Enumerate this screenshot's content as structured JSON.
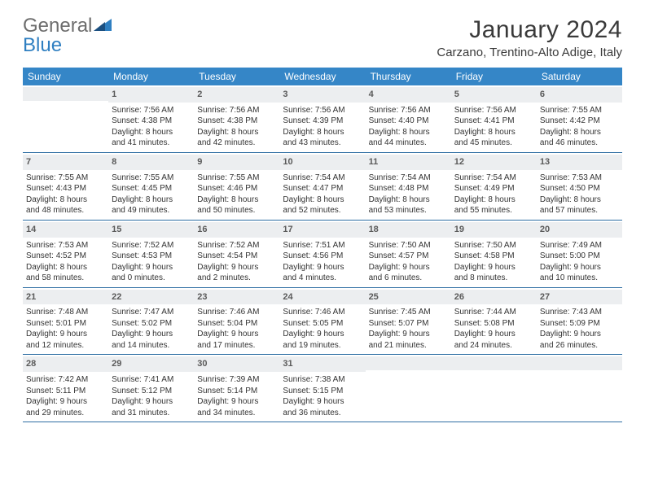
{
  "logo": {
    "text1": "General",
    "text2": "Blue"
  },
  "title": "January 2024",
  "location": "Carzano, Trentino-Alto Adige, Italy",
  "header_bg": "#3586c7",
  "weekdays": [
    "Sunday",
    "Monday",
    "Tuesday",
    "Wednesday",
    "Thursday",
    "Friday",
    "Saturday"
  ],
  "weeks": [
    [
      {
        "n": "",
        "l": []
      },
      {
        "n": "1",
        "l": [
          "Sunrise: 7:56 AM",
          "Sunset: 4:38 PM",
          "Daylight: 8 hours",
          "and 41 minutes."
        ]
      },
      {
        "n": "2",
        "l": [
          "Sunrise: 7:56 AM",
          "Sunset: 4:38 PM",
          "Daylight: 8 hours",
          "and 42 minutes."
        ]
      },
      {
        "n": "3",
        "l": [
          "Sunrise: 7:56 AM",
          "Sunset: 4:39 PM",
          "Daylight: 8 hours",
          "and 43 minutes."
        ]
      },
      {
        "n": "4",
        "l": [
          "Sunrise: 7:56 AM",
          "Sunset: 4:40 PM",
          "Daylight: 8 hours",
          "and 44 minutes."
        ]
      },
      {
        "n": "5",
        "l": [
          "Sunrise: 7:56 AM",
          "Sunset: 4:41 PM",
          "Daylight: 8 hours",
          "and 45 minutes."
        ]
      },
      {
        "n": "6",
        "l": [
          "Sunrise: 7:55 AM",
          "Sunset: 4:42 PM",
          "Daylight: 8 hours",
          "and 46 minutes."
        ]
      }
    ],
    [
      {
        "n": "7",
        "l": [
          "Sunrise: 7:55 AM",
          "Sunset: 4:43 PM",
          "Daylight: 8 hours",
          "and 48 minutes."
        ]
      },
      {
        "n": "8",
        "l": [
          "Sunrise: 7:55 AM",
          "Sunset: 4:45 PM",
          "Daylight: 8 hours",
          "and 49 minutes."
        ]
      },
      {
        "n": "9",
        "l": [
          "Sunrise: 7:55 AM",
          "Sunset: 4:46 PM",
          "Daylight: 8 hours",
          "and 50 minutes."
        ]
      },
      {
        "n": "10",
        "l": [
          "Sunrise: 7:54 AM",
          "Sunset: 4:47 PM",
          "Daylight: 8 hours",
          "and 52 minutes."
        ]
      },
      {
        "n": "11",
        "l": [
          "Sunrise: 7:54 AM",
          "Sunset: 4:48 PM",
          "Daylight: 8 hours",
          "and 53 minutes."
        ]
      },
      {
        "n": "12",
        "l": [
          "Sunrise: 7:54 AM",
          "Sunset: 4:49 PM",
          "Daylight: 8 hours",
          "and 55 minutes."
        ]
      },
      {
        "n": "13",
        "l": [
          "Sunrise: 7:53 AM",
          "Sunset: 4:50 PM",
          "Daylight: 8 hours",
          "and 57 minutes."
        ]
      }
    ],
    [
      {
        "n": "14",
        "l": [
          "Sunrise: 7:53 AM",
          "Sunset: 4:52 PM",
          "Daylight: 8 hours",
          "and 58 minutes."
        ]
      },
      {
        "n": "15",
        "l": [
          "Sunrise: 7:52 AM",
          "Sunset: 4:53 PM",
          "Daylight: 9 hours",
          "and 0 minutes."
        ]
      },
      {
        "n": "16",
        "l": [
          "Sunrise: 7:52 AM",
          "Sunset: 4:54 PM",
          "Daylight: 9 hours",
          "and 2 minutes."
        ]
      },
      {
        "n": "17",
        "l": [
          "Sunrise: 7:51 AM",
          "Sunset: 4:56 PM",
          "Daylight: 9 hours",
          "and 4 minutes."
        ]
      },
      {
        "n": "18",
        "l": [
          "Sunrise: 7:50 AM",
          "Sunset: 4:57 PM",
          "Daylight: 9 hours",
          "and 6 minutes."
        ]
      },
      {
        "n": "19",
        "l": [
          "Sunrise: 7:50 AM",
          "Sunset: 4:58 PM",
          "Daylight: 9 hours",
          "and 8 minutes."
        ]
      },
      {
        "n": "20",
        "l": [
          "Sunrise: 7:49 AM",
          "Sunset: 5:00 PM",
          "Daylight: 9 hours",
          "and 10 minutes."
        ]
      }
    ],
    [
      {
        "n": "21",
        "l": [
          "Sunrise: 7:48 AM",
          "Sunset: 5:01 PM",
          "Daylight: 9 hours",
          "and 12 minutes."
        ]
      },
      {
        "n": "22",
        "l": [
          "Sunrise: 7:47 AM",
          "Sunset: 5:02 PM",
          "Daylight: 9 hours",
          "and 14 minutes."
        ]
      },
      {
        "n": "23",
        "l": [
          "Sunrise: 7:46 AM",
          "Sunset: 5:04 PM",
          "Daylight: 9 hours",
          "and 17 minutes."
        ]
      },
      {
        "n": "24",
        "l": [
          "Sunrise: 7:46 AM",
          "Sunset: 5:05 PM",
          "Daylight: 9 hours",
          "and 19 minutes."
        ]
      },
      {
        "n": "25",
        "l": [
          "Sunrise: 7:45 AM",
          "Sunset: 5:07 PM",
          "Daylight: 9 hours",
          "and 21 minutes."
        ]
      },
      {
        "n": "26",
        "l": [
          "Sunrise: 7:44 AM",
          "Sunset: 5:08 PM",
          "Daylight: 9 hours",
          "and 24 minutes."
        ]
      },
      {
        "n": "27",
        "l": [
          "Sunrise: 7:43 AM",
          "Sunset: 5:09 PM",
          "Daylight: 9 hours",
          "and 26 minutes."
        ]
      }
    ],
    [
      {
        "n": "28",
        "l": [
          "Sunrise: 7:42 AM",
          "Sunset: 5:11 PM",
          "Daylight: 9 hours",
          "and 29 minutes."
        ]
      },
      {
        "n": "29",
        "l": [
          "Sunrise: 7:41 AM",
          "Sunset: 5:12 PM",
          "Daylight: 9 hours",
          "and 31 minutes."
        ]
      },
      {
        "n": "30",
        "l": [
          "Sunrise: 7:39 AM",
          "Sunset: 5:14 PM",
          "Daylight: 9 hours",
          "and 34 minutes."
        ]
      },
      {
        "n": "31",
        "l": [
          "Sunrise: 7:38 AM",
          "Sunset: 5:15 PM",
          "Daylight: 9 hours",
          "and 36 minutes."
        ]
      },
      {
        "n": "",
        "l": []
      },
      {
        "n": "",
        "l": []
      },
      {
        "n": "",
        "l": []
      }
    ]
  ]
}
